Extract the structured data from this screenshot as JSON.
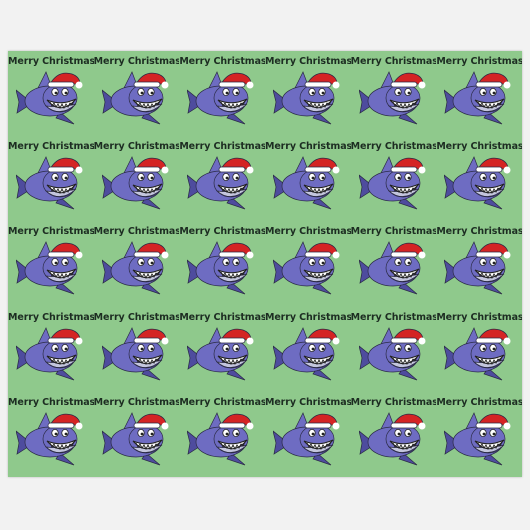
{
  "pattern": {
    "greeting": "Merry Christmas",
    "motif": "shark-in-santa-hat",
    "rows": 5,
    "columns": 6
  },
  "colors": {
    "background": "#8fc98c",
    "shark_body": "#6e6cc2",
    "shark_dark": "#4e4c9e",
    "shark_belly": "#c4c6dd",
    "hat_red": "#d42424",
    "hat_trim": "#ffffff",
    "text": "#1d2d22"
  }
}
